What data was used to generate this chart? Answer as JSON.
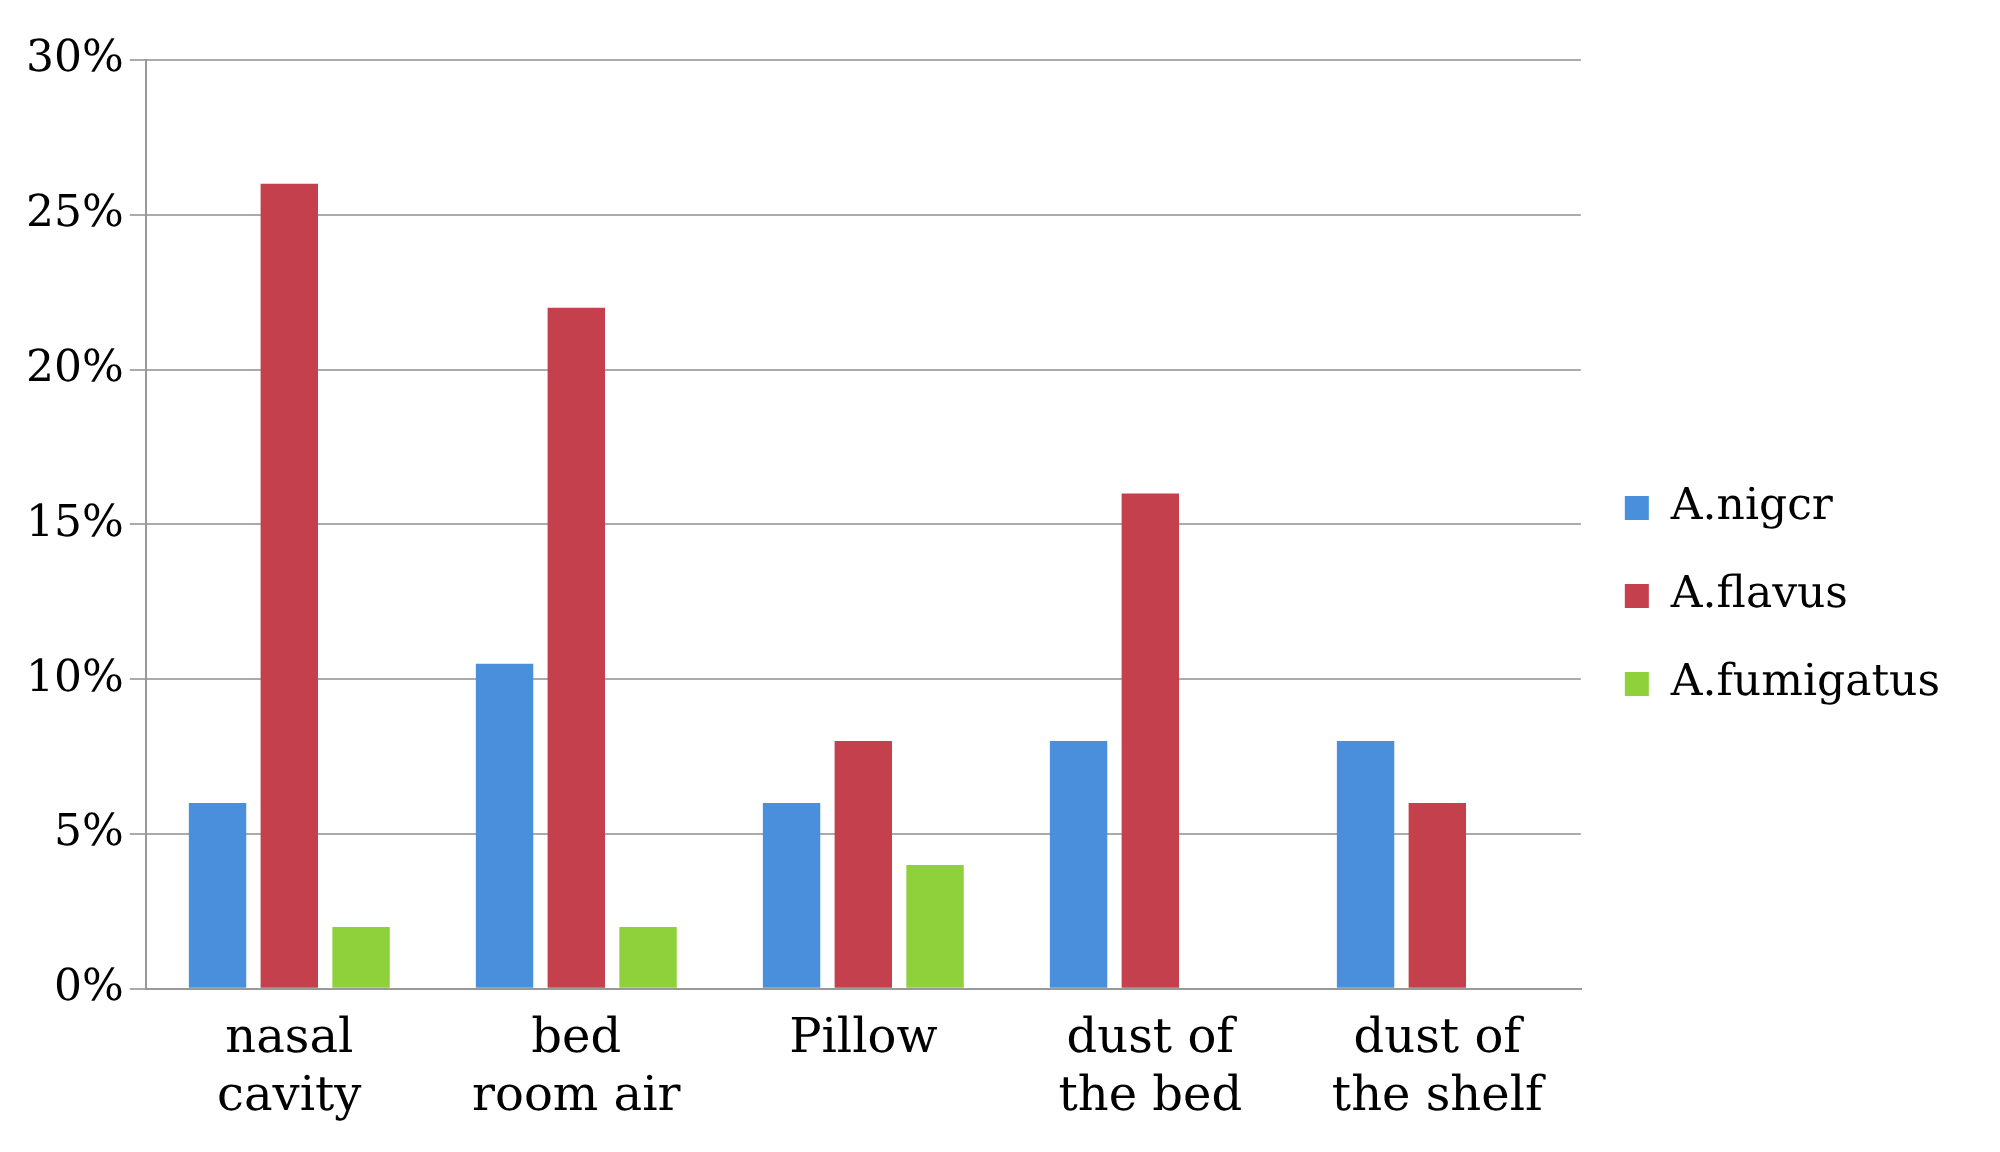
{
  "chart_data": {
    "type": "bar",
    "categories": [
      "nasal cavity",
      "bed room air",
      "Pillow",
      "dust of the bed",
      "dust of the shelf"
    ],
    "series": [
      {
        "name": "A.nigcr",
        "color": "#4a8fdc",
        "values": [
          6,
          10.5,
          6,
          8,
          8
        ]
      },
      {
        "name": "A.flavus",
        "color": "#c4404c",
        "values": [
          26,
          22,
          8,
          16,
          6
        ]
      },
      {
        "name": "A.fumigatus",
        "color": "#8fd13a",
        "values": [
          2,
          2,
          4,
          0,
          0
        ]
      }
    ],
    "ylim": [
      0,
      30
    ],
    "yticks": [
      {
        "value": 0,
        "label": "0%"
      },
      {
        "value": 5,
        "label": "5%"
      },
      {
        "value": 10,
        "label": "10%"
      },
      {
        "value": 15,
        "label": "15%"
      },
      {
        "value": 20,
        "label": "20%"
      },
      {
        "value": 25,
        "label": "25%"
      },
      {
        "value": 30,
        "label": "30%"
      }
    ],
    "grid": "y",
    "legend": "right"
  }
}
